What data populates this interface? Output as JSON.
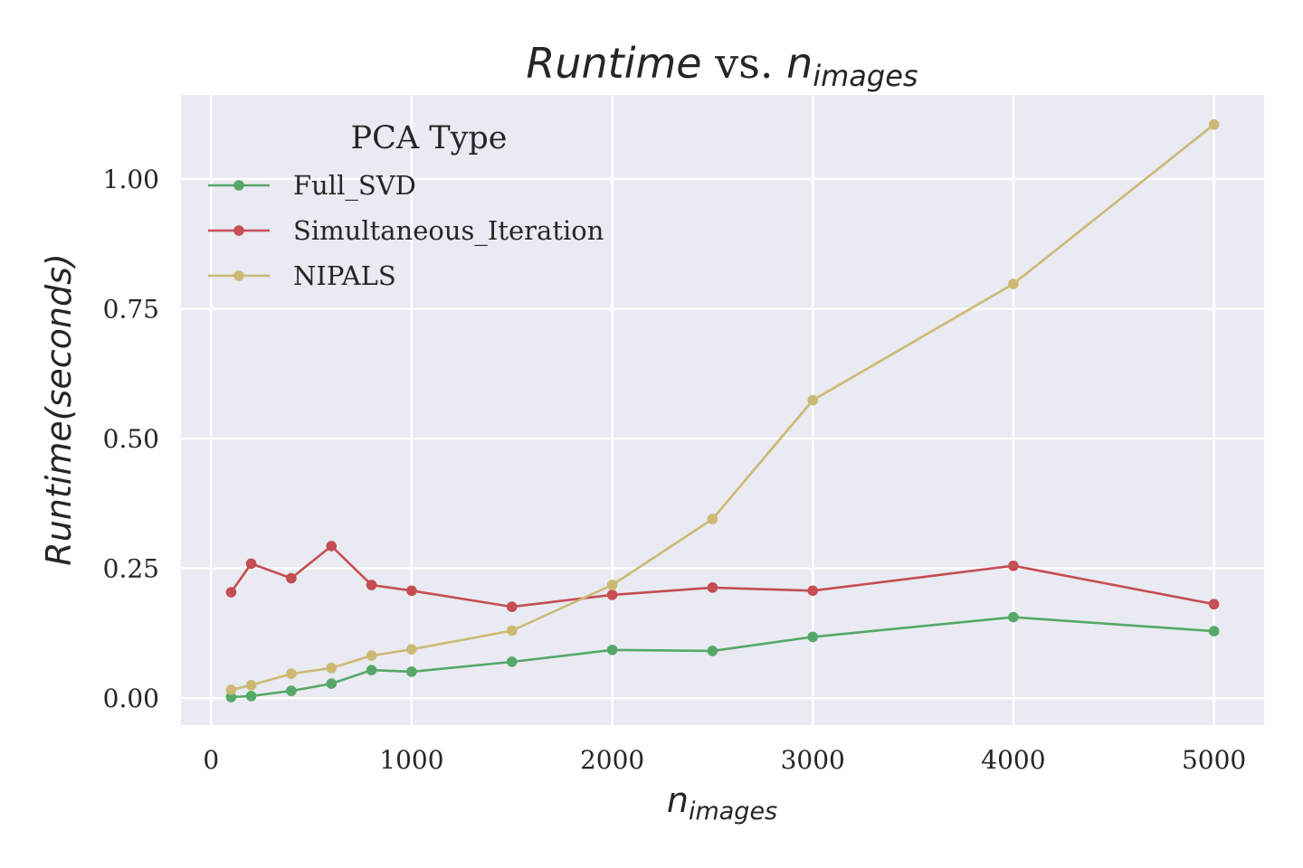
{
  "chart_data": {
    "type": "line",
    "title": {
      "main": "Runtime",
      "mid": " vs. ",
      "var": "n",
      "sub": "images"
    },
    "xlabel": {
      "var": "n",
      "sub": "images"
    },
    "ylabel": "Runtime(seconds)",
    "xlim": [
      -150,
      5250
    ],
    "ylim": [
      -0.052,
      1.162
    ],
    "xticks": [
      0,
      1000,
      2000,
      3000,
      4000,
      5000
    ],
    "xtick_labels": [
      "0",
      "1000",
      "2000",
      "3000",
      "4000",
      "5000"
    ],
    "yticks": [
      0,
      0.25,
      0.5,
      0.75,
      1.0
    ],
    "ytick_labels": [
      "0.00",
      "0.25",
      "0.50",
      "0.75",
      "1.00"
    ],
    "grid": true,
    "legend": {
      "title": "PCA Type",
      "placement": "upper-left"
    },
    "series": [
      {
        "name": "Full_SVD",
        "color": "#55a868",
        "x": [
          100,
          200,
          400,
          600,
          800,
          1000,
          1500,
          2000,
          2500,
          3000,
          4000,
          5000
        ],
        "y": [
          0.002,
          0.004,
          0.014,
          0.028,
          0.054,
          0.051,
          0.07,
          0.093,
          0.091,
          0.118,
          0.156,
          0.129
        ]
      },
      {
        "name": "Simultaneous_Iteration",
        "color": "#c44e52",
        "x": [
          100,
          200,
          400,
          600,
          800,
          1000,
          1500,
          2000,
          2500,
          3000,
          4000,
          5000
        ],
        "y": [
          0.204,
          0.259,
          0.231,
          0.293,
          0.218,
          0.207,
          0.176,
          0.199,
          0.213,
          0.207,
          0.255,
          0.181
        ]
      },
      {
        "name": "NIPALS",
        "color": "#ccb974",
        "x": [
          100,
          200,
          400,
          600,
          800,
          1000,
          1500,
          2000,
          2500,
          3000,
          4000,
          5000
        ],
        "y": [
          0.016,
          0.025,
          0.047,
          0.058,
          0.082,
          0.094,
          0.13,
          0.218,
          0.345,
          0.574,
          0.798,
          1.105
        ]
      }
    ]
  }
}
